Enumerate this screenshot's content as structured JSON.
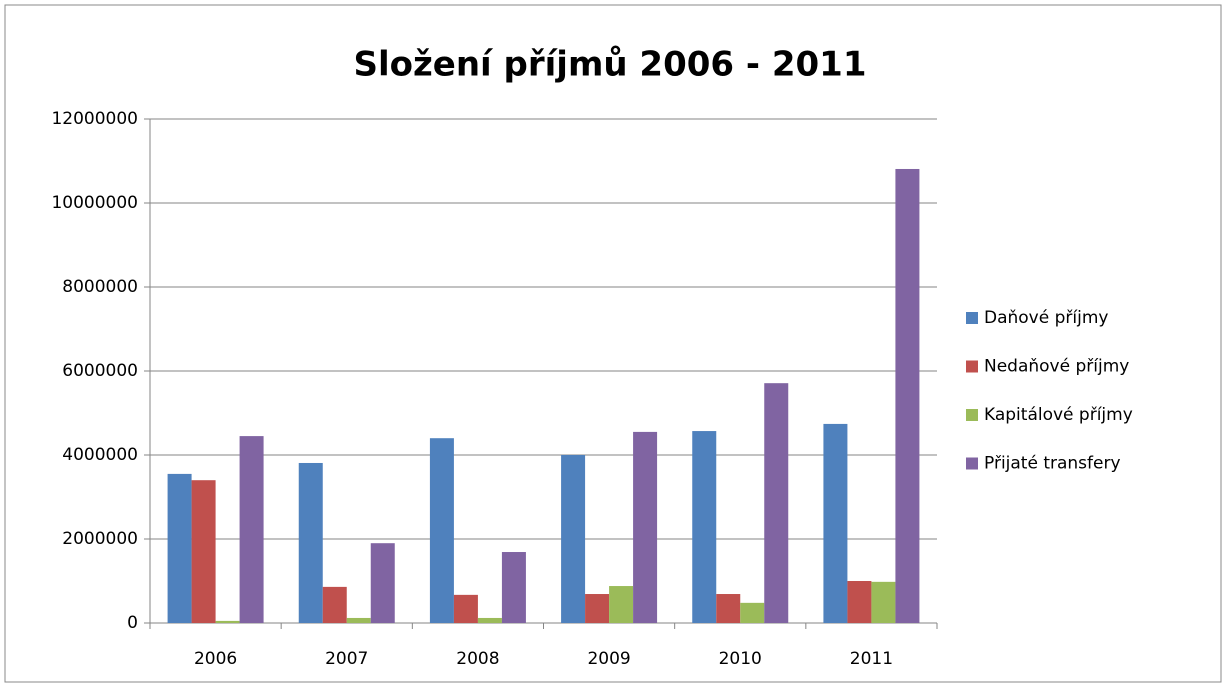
{
  "chart_data": {
    "type": "bar",
    "title": "Složení příjmů 2006 - 2011",
    "categories": [
      "2006",
      "2007",
      "2008",
      "2009",
      "2010",
      "2011"
    ],
    "series": [
      {
        "name": "Daňové příjmy",
        "color": "#4f81bd",
        "values": [
          3550000,
          3810000,
          4400000,
          4000000,
          4570000,
          4740000
        ]
      },
      {
        "name": "Nedaňové příjmy",
        "color": "#c0504d",
        "values": [
          3400000,
          860000,
          670000,
          690000,
          690000,
          1000000
        ]
      },
      {
        "name": "Kapitálové příjmy",
        "color": "#9bbb59",
        "values": [
          50000,
          120000,
          120000,
          880000,
          480000,
          980000
        ]
      },
      {
        "name": "Přijaté transfery",
        "color": "#8064a2",
        "values": [
          4450000,
          1900000,
          1690000,
          4550000,
          5710000,
          10810000
        ]
      }
    ],
    "ylim": [
      0,
      12000000
    ],
    "yticks": [
      0,
      2000000,
      4000000,
      6000000,
      8000000,
      10000000,
      12000000
    ],
    "grid": true,
    "legend": "right"
  }
}
